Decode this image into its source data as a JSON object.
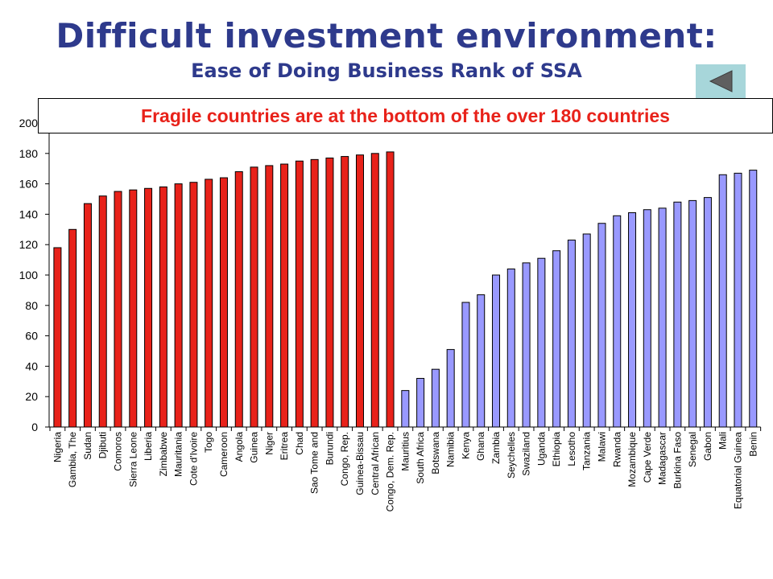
{
  "header": {
    "title": "Difficult investment environment:",
    "subtitle": "Ease of Doing Business Rank of SSA"
  },
  "banner": {
    "text": "Fragile countries are at the bottom of the over 180 countries"
  },
  "nav": {
    "back_icon": "triangle-left-icon"
  },
  "colors": {
    "fragile": "#E8221A",
    "non_fragile": "#9999FF",
    "title": "#2E3A8C",
    "banner_text": "#E8221A",
    "back_button": "#A7D6DA"
  },
  "chart_data": {
    "type": "bar",
    "title": "",
    "xlabel": "",
    "ylabel": "",
    "ylim": [
      0,
      200
    ],
    "yticks": [
      0,
      20,
      40,
      60,
      80,
      100,
      120,
      140,
      160,
      180,
      200
    ],
    "grid": false,
    "series": [
      {
        "group": "fragile",
        "color": "#E8221A",
        "categories": [
          "Nigeria",
          "Gambia, The",
          "Sudan",
          "Djibuti",
          "Comoros",
          "Sierra Leone",
          "Liberia",
          "Zimbabwe",
          "Mauritania",
          "Cote d'Ivoire",
          "Togo",
          "Cameroon",
          "Angola",
          "Guinea",
          "Niger",
          "Eritrea",
          "Chad",
          "Sao Tome and",
          "Burundi",
          "Congo, Rep.",
          "Guinea-Bissau",
          "Central African",
          "Congo, Dem. Rep."
        ],
        "values": [
          118,
          130,
          147,
          152,
          155,
          156,
          157,
          158,
          160,
          161,
          163,
          164,
          168,
          171,
          172,
          173,
          175,
          176,
          177,
          178,
          179,
          180,
          181
        ]
      },
      {
        "group": "non-fragile",
        "color": "#9999FF",
        "categories": [
          "Mauritius",
          "South Africa",
          "Botswana",
          "Namibia",
          "Kenya",
          "Ghana",
          "Zambia",
          "Seychelles",
          "Swaziland",
          "Uganda",
          "Ethiopia",
          "Lesotho",
          "Tanzania",
          "Malawi",
          "Rwanda",
          "Mozambique",
          "Cape Verde",
          "Madagascar",
          "Burkina Faso",
          "Senegal",
          "Gabon",
          "Mali",
          "Equatorial Guinea",
          "Benin"
        ],
        "values": [
          24,
          32,
          38,
          51,
          82,
          87,
          100,
          104,
          108,
          111,
          116,
          123,
          127,
          134,
          139,
          141,
          143,
          144,
          148,
          149,
          151,
          166,
          167,
          169
        ]
      }
    ]
  }
}
